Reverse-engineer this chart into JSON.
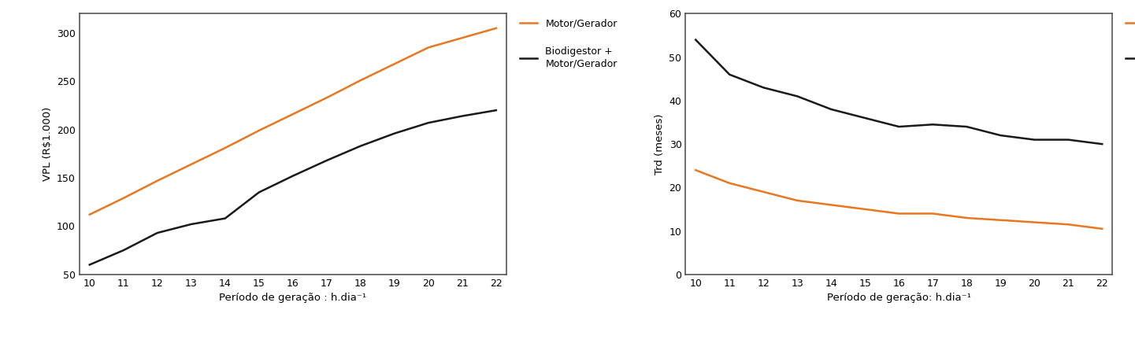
{
  "x": [
    10,
    11,
    12,
    13,
    14,
    15,
    16,
    17,
    18,
    19,
    20,
    21,
    22
  ],
  "vpl_motor": [
    112,
    129,
    147,
    164,
    181,
    199,
    216,
    233,
    251,
    268,
    285,
    295,
    305
  ],
  "vpl_bio": [
    60,
    75,
    93,
    102,
    108,
    135,
    152,
    168,
    183,
    196,
    207,
    214,
    220
  ],
  "trd_motor": [
    24,
    21,
    19,
    17,
    16,
    15,
    14,
    14,
    13,
    12.5,
    12,
    11.5,
    10.5
  ],
  "trd_bio": [
    54,
    46,
    43,
    41,
    38,
    36,
    34,
    34.5,
    34,
    32,
    31,
    31,
    30
  ],
  "color_motor": "#E87722",
  "color_bio": "#1a1a1a",
  "plot1_ylabel": "VPL (R$1.000)",
  "plot1_xlabel": "Período de geração : h.dia⁻¹",
  "plot1_ylim": [
    50,
    320
  ],
  "plot1_yticks": [
    50,
    100,
    150,
    200,
    250,
    300
  ],
  "plot2_ylabel": "Trd (meses)",
  "plot2_xlabel": "Período de geração: h.dia⁻¹",
  "plot2_ylim": [
    0,
    60
  ],
  "plot2_yticks": [
    0,
    10,
    20,
    30,
    40,
    50,
    60
  ],
  "legend_motor": "Motor/Gerador",
  "legend_bio": "Biodigestor +\nMotor/Gerador",
  "xticks": [
    10,
    11,
    12,
    13,
    14,
    15,
    16,
    17,
    18,
    19,
    20,
    21,
    22
  ],
  "bg_color": "#ffffff",
  "plot_bg": "#ffffff",
  "box_color": "#555555",
  "linewidth": 1.8
}
